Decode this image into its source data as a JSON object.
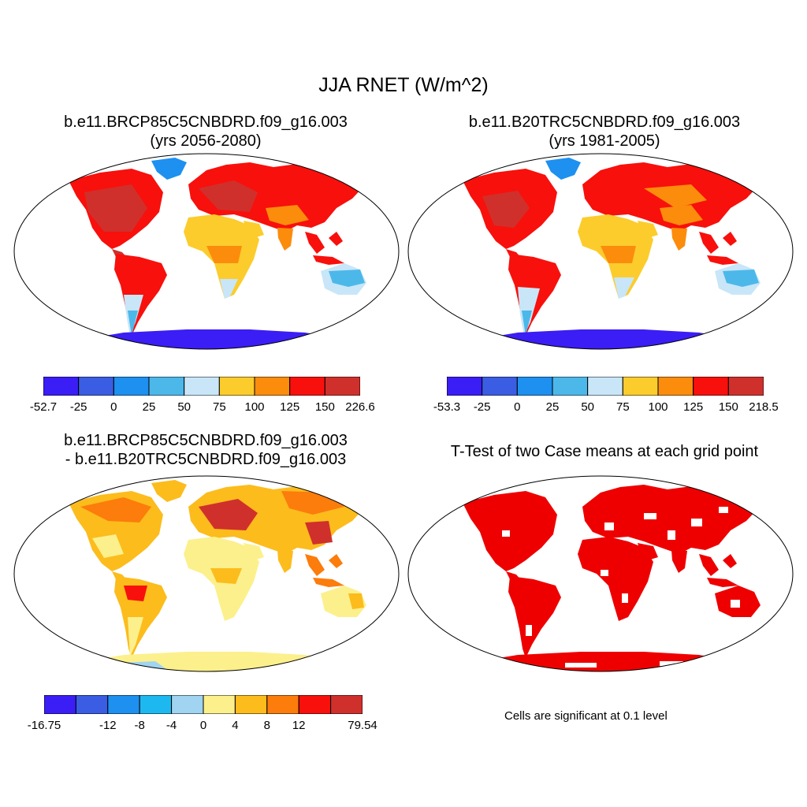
{
  "figure": {
    "title": "JJA RNET (W/m^2)"
  },
  "panels": [
    {
      "id": "future",
      "title_lines": [
        "b.e11.BRCP85C5CNBDRD.f09_g16.003",
        "(yrs 2056-2080)"
      ]
    },
    {
      "id": "historical",
      "title_lines": [
        "b.e11.B20TRC5CNBDRD.f09_g16.003",
        "(yrs 1981-2005)"
      ]
    },
    {
      "id": "difference",
      "title_lines": [
        "b.e11.BRCP85C5CNBDRD.f09_g16.003",
        "- b.e11.B20TRC5CNBDRD.f09_g16.003"
      ]
    },
    {
      "id": "ttest",
      "title_lines": [
        "T-Test of two Case means at each grid point"
      ]
    }
  ],
  "colorbars": [
    {
      "panel": "future",
      "colors": [
        "#3a1ef5",
        "#3a5de3",
        "#1e90f0",
        "#4cb8ea",
        "#c8e6f8",
        "#fccc2c",
        "#fc8c0c",
        "#f8100c",
        "#d0302c"
      ],
      "labels": [
        "-52.7",
        "-25",
        "0",
        "25",
        "50",
        "75",
        "100",
        "125",
        "150",
        "226.6"
      ]
    },
    {
      "panel": "historical",
      "colors": [
        "#3a1ef5",
        "#3a5de3",
        "#1e90f0",
        "#4cb8ea",
        "#c8e6f8",
        "#fccc2c",
        "#fc8c0c",
        "#f8100c",
        "#d0302c"
      ],
      "labels": [
        "-53.3",
        "-25",
        "0",
        "25",
        "50",
        "75",
        "100",
        "125",
        "150",
        "218.5"
      ]
    },
    {
      "panel": "difference",
      "colors": [
        "#3a1ef5",
        "#3a5de3",
        "#1e90f0",
        "#1eb8f0",
        "#a0d4f0",
        "#fcf08c",
        "#fcbc1c",
        "#fc7c0c",
        "#f8100c",
        "#d0302c"
      ],
      "labels": [
        "-16.75",
        "",
        "-12",
        "-8",
        "-4",
        "0",
        "4",
        "8",
        "12",
        "",
        "79.54"
      ]
    }
  ],
  "ttest": {
    "note": "Cells are significant at 0.1 level",
    "color": "#ee0000"
  },
  "map_colors": {
    "land_warm": "#f8100c",
    "land_hot": "#d0302c",
    "land_orange": "#fc8c0c",
    "land_yellow": "#fccc2c",
    "light_blue": "#c8e6f8",
    "mid_blue": "#4cb8ea",
    "blue": "#1e90f0",
    "deep_blue": "#3a1ef5",
    "diff_yellow": "#fcf08c",
    "diff_orange": "#fcbc1c",
    "diff_light_blue": "#a0d4f0"
  }
}
